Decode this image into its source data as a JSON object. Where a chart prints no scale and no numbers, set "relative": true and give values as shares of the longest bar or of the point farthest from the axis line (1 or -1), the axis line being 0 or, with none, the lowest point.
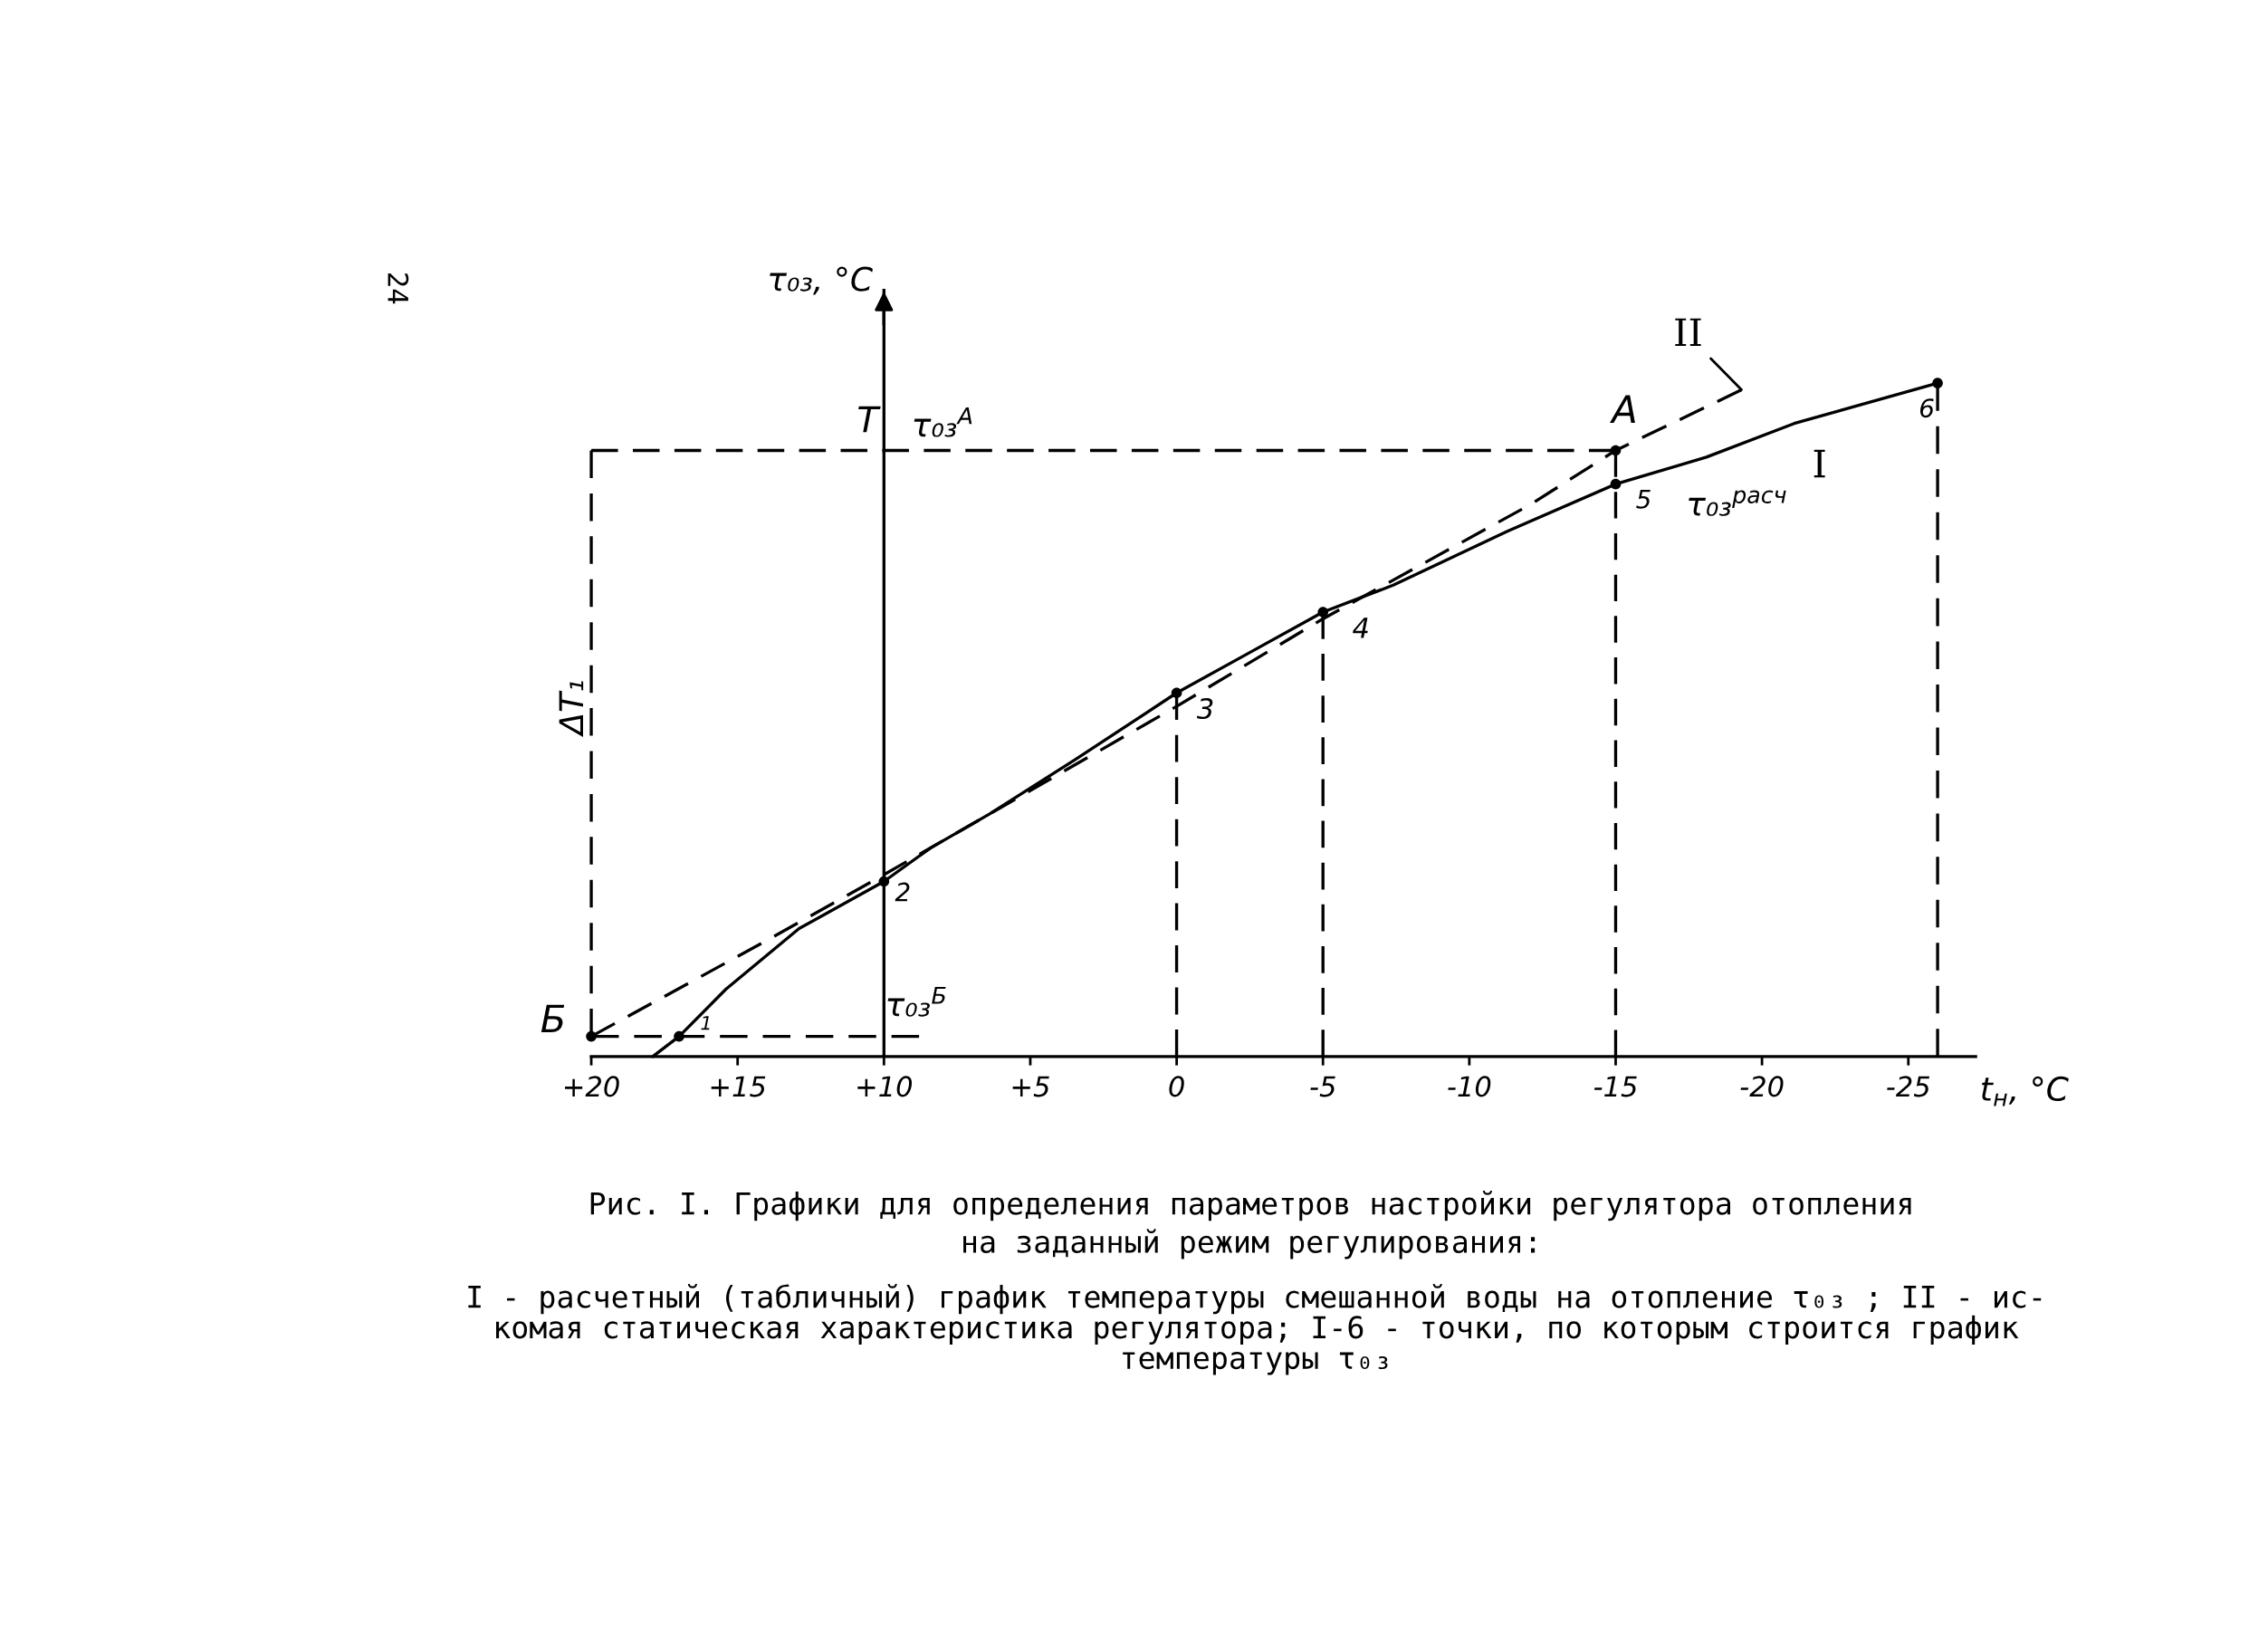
{
  "chart_data": {
    "type": "line",
    "relative": true,
    "xlabel": "t$_{н}$, °C",
    "ylabel": "τ₀₃, °C",
    "xlim": [
      20,
      -27.3
    ],
    "xticks": [
      {
        "value": 20,
        "label": "+20"
      },
      {
        "value": 15,
        "label": "+15"
      },
      {
        "value": 10,
        "label": "+10"
      },
      {
        "value": 5,
        "label": "+5"
      },
      0,
      -5,
      -10,
      -15,
      -20,
      -25
    ],
    "grid": false,
    "legend": false,
    "series": [
      {
        "name": "I",
        "line_style": "solid",
        "color": "#000000",
        "x": [
          17.9,
          17,
          15.4,
          12.9,
          10,
          8.4,
          6.4,
          3.5,
          0,
          -2.5,
          -5,
          -7.4,
          -11.3,
          -15,
          -18.1,
          -21.1,
          -26
        ],
        "values": [
          0,
          0.03,
          0.1,
          0.19,
          0.26,
          0.31,
          0.36,
          0.44,
          0.54,
          0.6,
          0.66,
          0.7,
          0.78,
          0.85,
          0.89,
          0.94,
          1
        ]
      },
      {
        "name": "II",
        "line_style": "dashed",
        "color": "#000000",
        "x": [
          20,
          14.1,
          10,
          0,
          -5,
          -12.1,
          -15,
          -19.3
        ],
        "values": [
          0.03,
          0.17,
          0.27,
          0.52,
          0.65,
          0.82,
          0.9,
          0.99
        ]
      },
      {
        "line_style": "dashed",
        "color": "#000000",
        "x": [
          20,
          20
        ],
        "values": [
          0.03,
          0.9
        ]
      },
      {
        "line_style": "dashed",
        "color": "#000000",
        "x": [
          20,
          -15
        ],
        "values": [
          0.9,
          0.9
        ]
      },
      {
        "line_style": "dashed",
        "color": "#000000",
        "x": [
          20,
          8.8
        ],
        "values": [
          0.03,
          0.03
        ]
      },
      {
        "line_style": "dashed",
        "color": "#000000",
        "x": [
          0,
          0
        ],
        "values": [
          0,
          0.54
        ]
      },
      {
        "line_style": "dashed",
        "color": "#000000",
        "x": [
          -5,
          -5
        ],
        "values": [
          0,
          0.66
        ]
      },
      {
        "line_style": "dashed",
        "color": "#000000",
        "x": [
          -15,
          -15
        ],
        "values": [
          0,
          0.9
        ]
      },
      {
        "line_style": "dashed",
        "color": "#000000",
        "x": [
          -26,
          -26
        ],
        "values": [
          0,
          1
        ]
      },
      {
        "type": "scatter",
        "marker": "circle",
        "color": "#000000",
        "x": [
          20,
          17,
          10,
          0,
          -5,
          -15,
          -15,
          -26
        ],
        "values": [
          0.03,
          0.03,
          0.26,
          0.54,
          0.66,
          0.85,
          0.9,
          1
        ]
      }
    ],
    "ref_lines": [
      {
        "axis": "x",
        "value": 10,
        "line_style": "solid",
        "color": "#000000"
      }
    ],
    "annotations": [
      "24",
      "Рис. I. Графики для определения параметров настройки регулятора отопления\nна заданный режим регулирования:",
      "I - расчетный (табличный) график температуры смешанной воды на отопление τ₀₃ ; II - ис-\nкомая статическая характеристика регулятора; I-6 - точки, по которым строится график\nтемпературы τ₀₃",
      "ΔT₁",
      {
        "text": "1",
        "x": 17,
        "y": 0.03
      },
      {
        "text": "2",
        "x": 10,
        "y": 0.26
      },
      {
        "text": "3",
        "x": 0,
        "y": 0.54
      },
      {
        "text": "4",
        "x": -5,
        "y": 0.66
      },
      {
        "text": "5",
        "x": -15,
        "y": 0.85
      },
      {
        "text": "6",
        "x": -26,
        "y": 1
      },
      {
        "text": "А",
        "x": -15,
        "y": 0.9
      },
      {
        "text": "Б",
        "x": 20,
        "y": 0.03
      },
      {
        "text": "Т",
        "x": 10,
        "y": 0.9
      },
      {
        "text": "τ₀₃$^{А}$",
        "x": 10,
        "y": 0.9
      },
      {
        "text": "τ₀₃$^{Б}$",
        "x": 10,
        "y": 0.03
      },
      {
        "text": "τ₀₃$^{расч}$",
        "x": -15,
        "y": 0.85
      }
    ]
  }
}
